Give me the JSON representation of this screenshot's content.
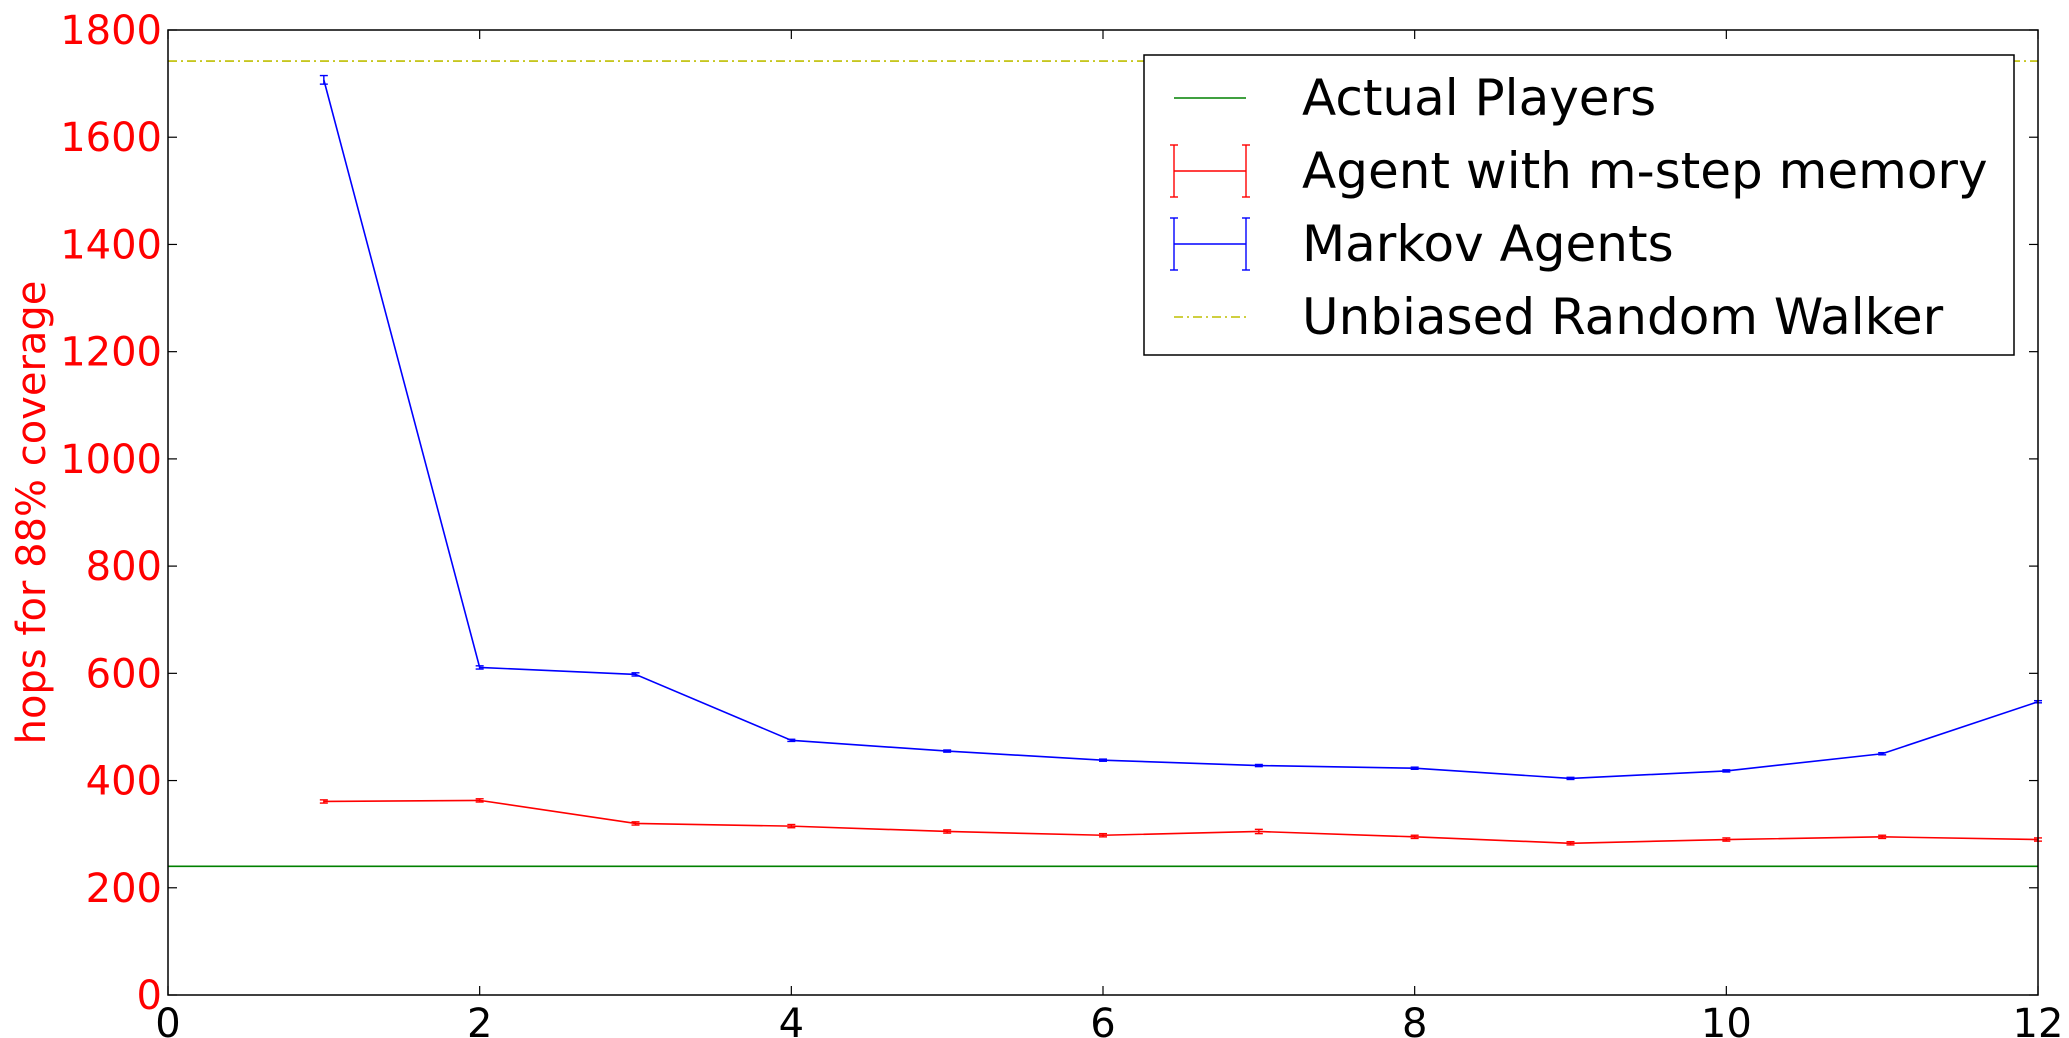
{
  "chart_data": {
    "type": "line",
    "title": "",
    "xlabel": "",
    "ylabel": "hops for 88% coverage",
    "xlim": [
      0,
      12
    ],
    "ylim": [
      0,
      1800
    ],
    "x_ticks": [
      0,
      2,
      4,
      6,
      8,
      10,
      12
    ],
    "y_ticks": [
      0,
      200,
      400,
      600,
      800,
      1000,
      1200,
      1400,
      1600,
      1800
    ],
    "grid": false,
    "legend_position": "top-right",
    "ylabel_color": "#ff0000",
    "series": [
      {
        "name": "Actual Players",
        "kind": "hline",
        "y": 240,
        "color": "#008000",
        "style": "solid"
      },
      {
        "name": "Agent with m-step memory",
        "kind": "errorbar",
        "color": "#ff0000",
        "style": "solid",
        "x": [
          1,
          2,
          3,
          4,
          5,
          6,
          7,
          8,
          9,
          10,
          11,
          12
        ],
        "y": [
          361,
          363,
          320,
          315,
          305,
          298,
          305,
          295,
          283,
          290,
          295,
          290
        ],
        "err": [
          3,
          3,
          3,
          3,
          3,
          3,
          4,
          3,
          3,
          3,
          3,
          3
        ]
      },
      {
        "name": "Markov Agents",
        "kind": "errorbar",
        "color": "#0000ff",
        "style": "solid",
        "x": [
          1,
          2,
          3,
          4,
          5,
          6,
          7,
          8,
          9,
          10,
          11,
          12
        ],
        "y": [
          1707,
          611,
          598,
          475,
          455,
          438,
          428,
          423,
          404,
          418,
          450,
          547
        ],
        "err": [
          8,
          3,
          3,
          2,
          2,
          2,
          2,
          2,
          2,
          2,
          2,
          2
        ]
      },
      {
        "name": "Unbiased Random Walker",
        "kind": "hline",
        "y": 1742,
        "color": "#bfbf00",
        "style": "dashdot"
      }
    ]
  }
}
